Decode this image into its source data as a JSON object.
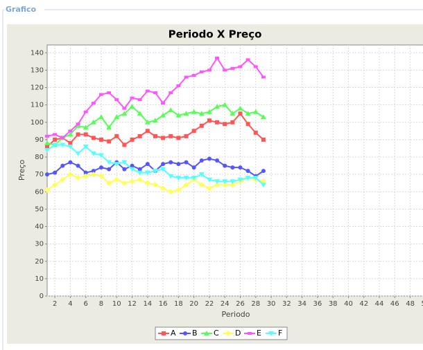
{
  "panel_title": "Grafico",
  "chart_data": {
    "type": "line",
    "title": "Periodo X Preço",
    "x_label": "Periodo",
    "y_label": "Preço",
    "x": [
      1,
      2,
      3,
      4,
      5,
      6,
      7,
      8,
      9,
      10,
      11,
      12,
      13,
      14,
      15,
      16,
      17,
      18,
      19,
      20,
      21,
      22,
      23,
      24,
      25,
      26,
      27,
      28,
      29
    ],
    "xlim": [
      1,
      51
    ],
    "xticks": [
      2,
      4,
      6,
      8,
      10,
      12,
      14,
      16,
      18,
      20,
      22,
      24,
      26,
      28,
      30,
      32,
      34,
      36,
      38,
      40,
      42,
      44,
      46,
      48,
      50
    ],
    "ylim": [
      0,
      144.5
    ],
    "yticks": [
      0,
      10,
      20,
      30,
      40,
      50,
      60,
      70,
      80,
      90,
      100,
      110,
      120,
      130,
      140
    ],
    "grid": true,
    "legend": "bottom",
    "series": [
      {
        "name": "A",
        "color": "#ff5555",
        "marker": "square",
        "values": [
          86,
          90,
          91,
          88,
          93,
          93,
          91,
          90,
          89,
          92,
          87,
          90,
          92,
          95,
          92,
          91,
          92,
          91,
          92,
          95,
          98,
          101,
          100,
          99,
          100,
          105,
          99,
          94,
          90
        ]
      },
      {
        "name": "B",
        "color": "#5555ff",
        "marker": "circle",
        "values": [
          70,
          71,
          75,
          77,
          75,
          71,
          72,
          74,
          73,
          77,
          73,
          75,
          73,
          76,
          72,
          76,
          77,
          76,
          77,
          74,
          78,
          79,
          78,
          75,
          74,
          74,
          72,
          69,
          72
        ]
      },
      {
        "name": "C",
        "color": "#55ff55",
        "marker": "triangle-up",
        "values": [
          88,
          87,
          91,
          93,
          98,
          97,
          100,
          103,
          97,
          103,
          105,
          109,
          105,
          100,
          101,
          104,
          107,
          104,
          105,
          106,
          105,
          106,
          109,
          110,
          105,
          108,
          105,
          106,
          103
        ]
      },
      {
        "name": "D",
        "color": "#ffff55",
        "marker": "diamond",
        "values": [
          61,
          64,
          67,
          70,
          68,
          69,
          70,
          69,
          65,
          67,
          65,
          66,
          67,
          65,
          64,
          62,
          60,
          61,
          64,
          67,
          64,
          62,
          64,
          64,
          64,
          66,
          68,
          67,
          66
        ]
      },
      {
        "name": "E",
        "color": "#ff55ff",
        "marker": "rectangle",
        "values": [
          92,
          93,
          91,
          95,
          99,
          106,
          111,
          116,
          117,
          113,
          108,
          114,
          113,
          118,
          117,
          111,
          117,
          121,
          126,
          127,
          129,
          130,
          137,
          130,
          131,
          132,
          136,
          132,
          126
        ]
      },
      {
        "name": "F",
        "color": "#55ffff",
        "marker": "triangle-down",
        "values": [
          84,
          87,
          87,
          86,
          82,
          86,
          82,
          81,
          77,
          76,
          77,
          73,
          71,
          71,
          72,
          73,
          69,
          68,
          68,
          68,
          70,
          67,
          66,
          66,
          66,
          67,
          68,
          68,
          64
        ]
      }
    ]
  }
}
